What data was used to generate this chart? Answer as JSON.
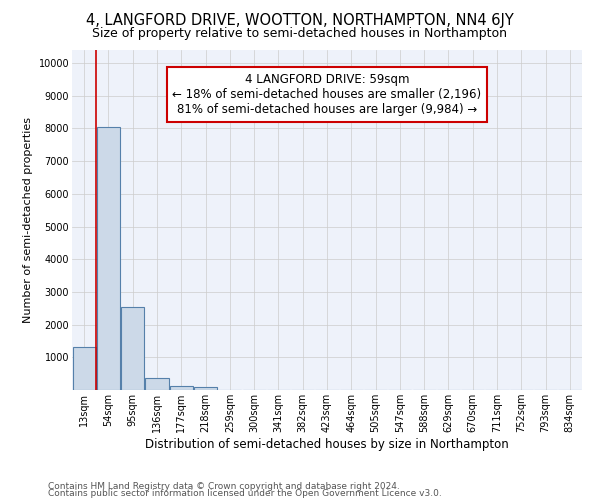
{
  "title": "4, LANGFORD DRIVE, WOOTTON, NORTHAMPTON, NN4 6JY",
  "subtitle": "Size of property relative to semi-detached houses in Northampton",
  "xlabel": "Distribution of semi-detached houses by size in Northampton",
  "ylabel": "Number of semi-detached properties",
  "categories": [
    "13sqm",
    "54sqm",
    "95sqm",
    "136sqm",
    "177sqm",
    "218sqm",
    "259sqm",
    "300sqm",
    "341sqm",
    "382sqm",
    "423sqm",
    "464sqm",
    "505sqm",
    "547sqm",
    "588sqm",
    "629sqm",
    "670sqm",
    "711sqm",
    "752sqm",
    "793sqm",
    "834sqm"
  ],
  "bar_heights": [
    1320,
    8050,
    2550,
    380,
    130,
    100,
    0,
    0,
    0,
    0,
    0,
    0,
    0,
    0,
    0,
    0,
    0,
    0,
    0,
    0,
    0
  ],
  "bar_color": "#ccd9e8",
  "bar_edge_color": "#5580aa",
  "bar_edge_width": 0.8,
  "grid_color": "#cccccc",
  "background_color": "#eef2fa",
  "property_line_x": 0.5,
  "property_line_color": "#cc0000",
  "annotation_line1": "4 LANGFORD DRIVE: 59sqm",
  "annotation_line2": "← 18% of semi-detached houses are smaller (2,196)",
  "annotation_line3": "81% of semi-detached houses are larger (9,984) →",
  "annotation_box_color": "#ffffff",
  "annotation_box_edge": "#cc0000",
  "ylim": [
    0,
    10400
  ],
  "yticks": [
    0,
    1000,
    2000,
    3000,
    4000,
    5000,
    6000,
    7000,
    8000,
    9000,
    10000
  ],
  "footer_line1": "Contains HM Land Registry data © Crown copyright and database right 2024.",
  "footer_line2": "Contains public sector information licensed under the Open Government Licence v3.0.",
  "title_fontsize": 10.5,
  "subtitle_fontsize": 9,
  "xlabel_fontsize": 8.5,
  "ylabel_fontsize": 8,
  "tick_fontsize": 7,
  "footer_fontsize": 6.5,
  "annotation_fontsize": 8.5
}
